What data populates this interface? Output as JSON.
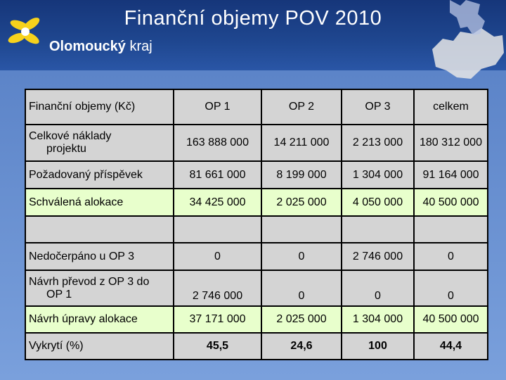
{
  "title": "Finanční objemy POV 2010",
  "logo": {
    "brand": "Olomoucký",
    "suffix": "kraj"
  },
  "columns": [
    "Finanční objemy (Kč)",
    "OP 1",
    "OP 2",
    "OP 3",
    "celkem"
  ],
  "rows": [
    {
      "label_line1": "Celkové náklady",
      "label_line2": "projektu",
      "values": [
        "163 888 000",
        "14 211 000",
        "2 213 000",
        "180 312 000"
      ]
    },
    {
      "label": "Požadovaný příspěvek",
      "values": [
        "81 661 000",
        "8 199 000",
        "1 304 000",
        "91 164 000"
      ]
    },
    {
      "label": "Schválená alokace",
      "values": [
        "34 425 000",
        "2 025 000",
        "4 050 000",
        "40 500 000"
      ]
    },
    {
      "label": "",
      "values": [
        "",
        "",
        "",
        ""
      ]
    },
    {
      "label": "Nedočerpáno u OP 3",
      "values": [
        "0",
        "0",
        "2 746 000",
        "0"
      ]
    },
    {
      "label_line1": "Návrh převod z OP 3 do",
      "label_line2": "OP 1",
      "values": [
        "2 746 000",
        "0",
        "0",
        "0"
      ]
    },
    {
      "label": "Návrh úpravy alokace",
      "values": [
        "37 171 000",
        "2 025 000",
        "1 304 000",
        "40 500 000"
      ]
    },
    {
      "label": "Vykrytí (%)",
      "values": [
        "45,5",
        "24,6",
        "100",
        "44,4"
      ]
    }
  ]
}
